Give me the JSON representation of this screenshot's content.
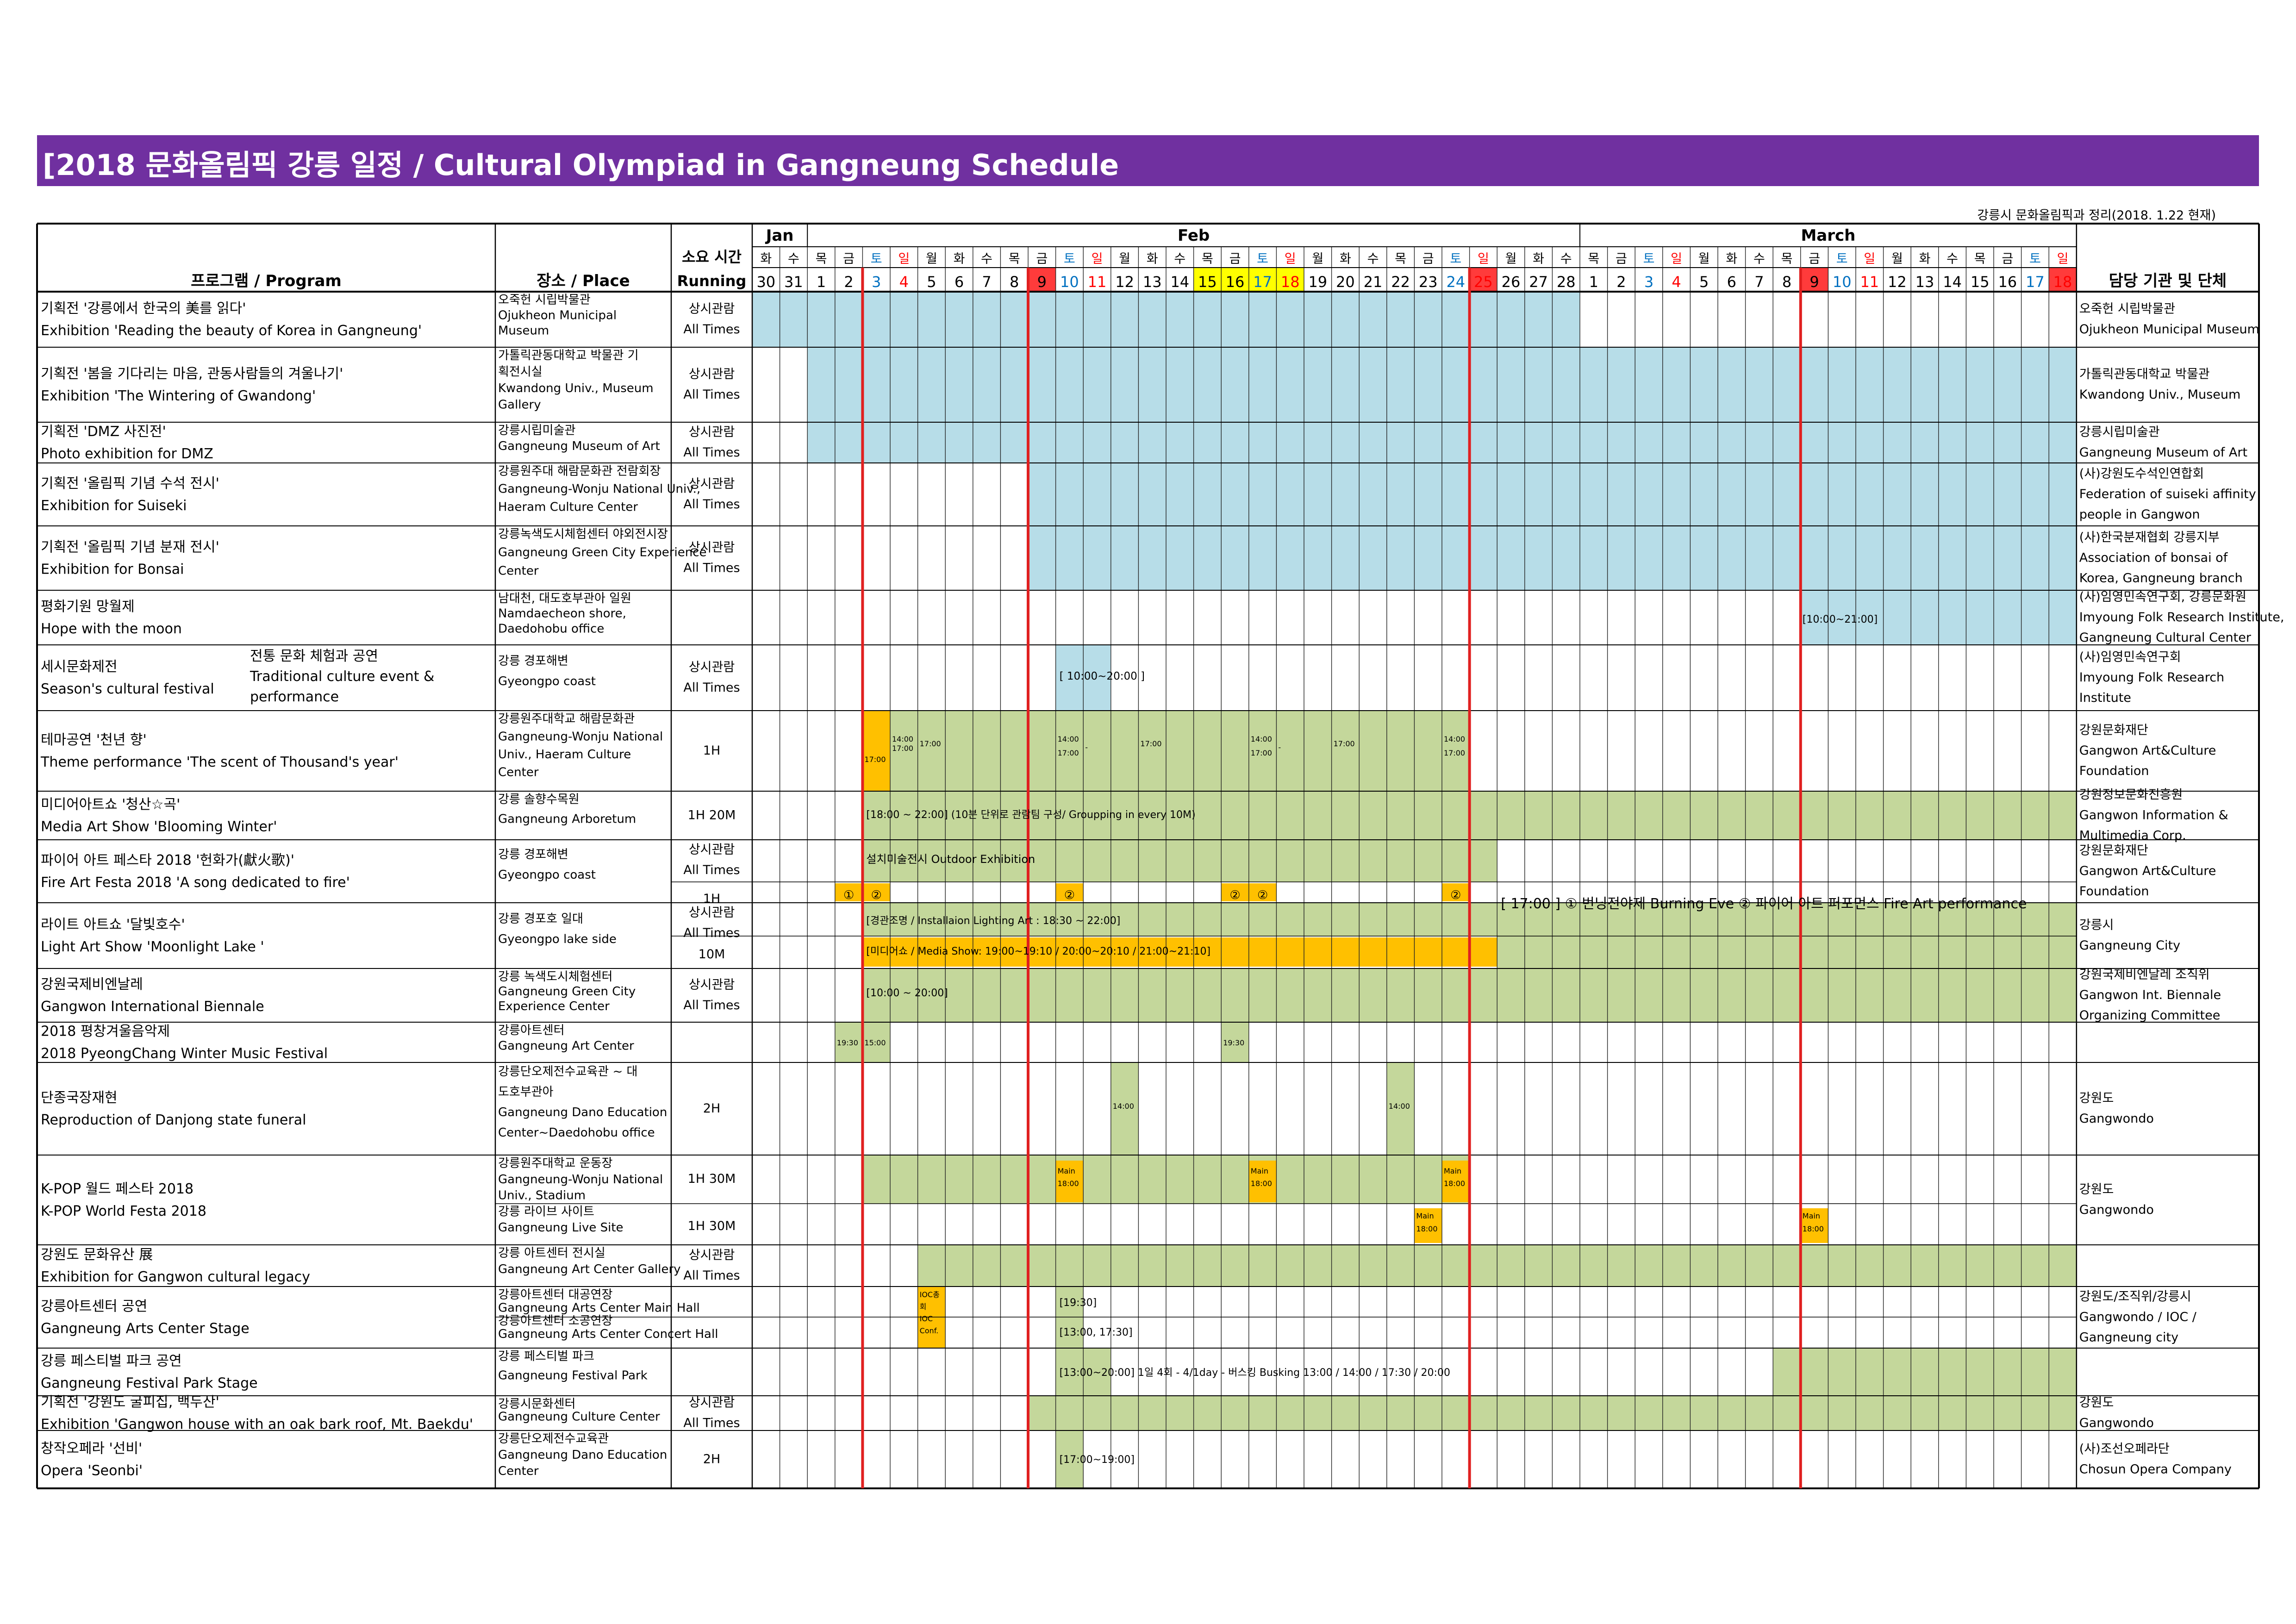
{
  "title": "[2018 문화올림픽 강릉 일정  / Cultural Olympiad in Gangneung Schedule",
  "source_note": "강릉시 문화올림픽과 정리(2018. 1.22 현재)",
  "colors": {
    "title_bg": "#7030a0",
    "blue_fill": "#b7dde8",
    "green_fill": "#c4d79b",
    "orange_fill": "#ffc000",
    "red_line": "#e02020",
    "weekend_sat": "#0070c0",
    "weekend_sun": "#ff0000",
    "holiday_red": "#ff3b3b",
    "holiday_yellow": "#ffff00"
  },
  "header": {
    "program": "프로그램 / Program",
    "place": "장소 / Place",
    "running_ko": "소요 시간",
    "running_en": "Running",
    "organizer": "담당 기관 및 단체",
    "months": [
      {
        "label": "Jan",
        "start": 0,
        "end": 1
      },
      {
        "label": "Feb",
        "start": 2,
        "end": 29
      },
      {
        "label": "March",
        "start": 30,
        "end": 47
      }
    ]
  },
  "dates": [
    "30",
    "31",
    "1",
    "2",
    "3",
    "4",
    "5",
    "6",
    "7",
    "8",
    "9",
    "10",
    "11",
    "12",
    "13",
    "14",
    "15",
    "16",
    "17",
    "18",
    "19",
    "20",
    "21",
    "22",
    "23",
    "24",
    "25",
    "26",
    "27",
    "28",
    "1",
    "2",
    "3",
    "4",
    "5",
    "6",
    "7",
    "8",
    "9",
    "10",
    "11",
    "12",
    "13",
    "14",
    "15",
    "16",
    "17",
    "18"
  ],
  "weekdays": [
    "화",
    "수",
    "목",
    "금",
    "토",
    "일",
    "월",
    "화",
    "수",
    "목",
    "금",
    "토",
    "일",
    "월",
    "화",
    "수",
    "목",
    "금",
    "토",
    "일",
    "월",
    "화",
    "수",
    "목",
    "금",
    "토",
    "일",
    "월",
    "화",
    "수",
    "목",
    "금",
    "토",
    "일",
    "월",
    "화",
    "수",
    "목",
    "금",
    "토",
    "일",
    "월",
    "화",
    "수",
    "목",
    "금",
    "토",
    "일"
  ],
  "date_highlights": {
    "red_bg": [
      10,
      26,
      38,
      47
    ],
    "yellow_bg": [
      16,
      17,
      18,
      19
    ]
  },
  "rows": [
    {
      "program": [
        "기획전 '강릉에서 한국의 美를 읽다'",
        "Exhibition 'Reading the beauty of Korea in Gangneung'"
      ],
      "place": [
        "오죽헌 시립박물관",
        "Ojukheon Municipal",
        "Museum"
      ],
      "running": [
        "상시관람",
        "All Times"
      ],
      "organizer": [
        "오죽헌 시립박물관",
        "Ojukheon Municipal Museum"
      ]
    },
    {
      "program": [
        "기획전 '봄을 기다리는 마음, 관동사람들의 겨울나기'",
        "Exhibition 'The Wintering of Gwandong'"
      ],
      "place": [
        "가톨릭관동대학교 박물관 기",
        "획전시실",
        "Kwandong Univ., Museum",
        "Gallery"
      ],
      "running": [
        "상시관람",
        "All Times"
      ],
      "organizer": [
        "가톨릭관동대학교 박물관",
        "Kwandong Univ., Museum"
      ]
    },
    {
      "program": [
        "기획전 'DMZ 사진전'",
        "Photo exhibition for DMZ"
      ],
      "place": [
        "강릉시립미술관",
        "Gangneung Museum of Art"
      ],
      "running": [
        "상시관람",
        "All Times"
      ],
      "organizer": [
        "강릉시립미술관",
        "Gangneung Museum of Art"
      ]
    },
    {
      "program": [
        "기획전 '올림픽 기념 수석 전시'",
        "Exhibition for Suiseki"
      ],
      "place": [
        "강릉원주대 해람문화관 전람회장",
        "Gangneung-Wonju National Univ.,",
        "Haeram Culture Center"
      ],
      "running": [
        "상시관람",
        "All Times"
      ],
      "organizer": [
        "(사)강원도수석인연합회",
        "Federation of suiseki affinity",
        "people in Gangwon"
      ]
    },
    {
      "program": [
        "기획전 '올림픽 기념 분재 전시'",
        "Exhibition for Bonsai"
      ],
      "place": [
        "강릉녹색도시체험센터 야외전시장",
        "Gangneung Green City Experience",
        "Center"
      ],
      "running": [
        "상시관람",
        "All Times"
      ],
      "organizer": [
        "(사)한국분재협회 강릉지부",
        "Association of bonsai of",
        "Korea, Gangneung branch"
      ]
    },
    {
      "program": [
        "평화기원 망월제",
        "Hope with the moon"
      ],
      "place": [
        "남대천, 대도호부관아 일원",
        "Namdaecheon shore,",
        "Daedohobu office"
      ],
      "running": [
        "",
        ""
      ],
      "organizer": [
        "(사)임영민속연구회, 강릉문화원",
        "Imyoung Folk Research Institute,",
        "Gangneung Cultural Center"
      ],
      "note": "[10:00~21:00]"
    },
    {
      "program": [
        "세시문화제전",
        "Season's cultural festival"
      ],
      "program2": [
        "전통 문화 체험과 공연",
        "Traditional culture event &",
        "performance"
      ],
      "place": [
        "강릉 경포해변",
        "Gyeongpo coast"
      ],
      "running": [
        "상시관람",
        "All Times"
      ],
      "organizer": [
        "(사)임영민속연구회",
        "Imyoung Folk Research",
        "Institute"
      ],
      "note": "[ 10:00~20:00 ]"
    },
    {
      "program": [
        "테마공연 '천년 향'",
        "Theme performance 'The scent of Thousand's year'"
      ],
      "place": [
        "강릉원주대학교 해람문화관",
        "Gangneung-Wonju National",
        "Univ., Haeram Culture",
        "Center"
      ],
      "running": [
        "1H"
      ],
      "organizer": [
        "강원문화재단",
        "Gangwon Art&Culture",
        "Foundation"
      ],
      "times": [
        "17:00",
        "14:00",
        "17:00",
        "17:00",
        "14:00",
        "17:00",
        "-",
        "17:00",
        "14:00",
        "17:00",
        "-",
        "17:00",
        "14:00",
        "17:00"
      ]
    },
    {
      "program": [
        "미디어아트쇼 '청산☆곡'",
        "Media Art Show 'Blooming Winter'"
      ],
      "place": [
        "강릉 솔향수목원",
        "Gangneung Arboretum"
      ],
      "running": [
        "1H 20M"
      ],
      "organizer": [
        "강원정보문화진흥원",
        "Gangwon Information &",
        "Multimedia Corp."
      ],
      "note": "[18:00 ~ 22:00] (10분 단위로 관람팀 구성/ Groupping in every 10M)"
    },
    {
      "program": [
        "파이어 아트 페스타 2018 '헌화가(獻火歌)'",
        "Fire Art Festa 2018 'A song dedicated to fire'"
      ],
      "place": [
        "강릉 경포해변",
        "Gyeongpo coast"
      ],
      "running": [
        "상시관람",
        "All Times",
        "1H"
      ],
      "organizer": [
        "강원문화재단",
        "Gangwon Art&Culture",
        "Foundation"
      ],
      "note": "설치미술전시 Outdoor Exhibition",
      "note2": "[ 17:00 ] ① 번닝전야제 Burning Eve ② 파이어 아트 퍼포먼스 Fire Art performance",
      "marks": [
        "①",
        "②",
        "②",
        "②",
        "②",
        "②"
      ]
    },
    {
      "program": [
        "라이트 아트쇼 '달빛호수'",
        "Light Art Show 'Moonlight Lake '"
      ],
      "place": [
        "강릉 경포호 일대",
        "Gyeongpo lake side"
      ],
      "running": [
        "상시관람",
        "All Times",
        "10M"
      ],
      "organizer": [
        "강릉시",
        "Gangneung City"
      ],
      "note": "[경관조명 / Installaion Lighting Art : 18:30 ~ 22:00]",
      "note2": "[미디어쇼 / Media Show: 19:00~19:10 / 20:00~20:10 / 21:00~21:10]"
    },
    {
      "program": [
        "강원국제비엔날레",
        "Gangwon International Biennale"
      ],
      "place": [
        "강릉 녹색도시체험센터",
        "Gangneung Green City",
        "Experience Center"
      ],
      "running": [
        "상시관람",
        "All Times"
      ],
      "organizer": [
        "강원국제비엔날레 조직위",
        "Gangwon Int. Biennale",
        "Organizing Committee"
      ],
      "note": "[10:00 ~ 20:00]"
    },
    {
      "program": [
        "2018 평창겨울음악제",
        "2018 PyeongChang Winter Music Festival"
      ],
      "place": [
        "강릉아트센터",
        "Gangneung Art Center"
      ],
      "running": [
        ""
      ],
      "organizer": [],
      "times": [
        "19:30",
        "15:00",
        "19:30"
      ]
    },
    {
      "program": [
        "단종국장재현",
        "Reproduction of Danjong state funeral"
      ],
      "place": [
        "강릉단오제전수교육관 ~ 대",
        "도호부관아",
        "Gangneung Dano Education",
        "Center~Daedohobu office"
      ],
      "running": [
        "2H"
      ],
      "organizer": [
        "강원도",
        "Gangwondo"
      ],
      "times": [
        "14:00",
        "14:00"
      ]
    },
    {
      "program": [
        "K-POP 월드 페스타 2018",
        "K-POP World Festa 2018"
      ],
      "place": [
        "강릉원주대학교 운동장",
        "Gangneung-Wonju National",
        "Univ., Stadium",
        "강릉 라이브 사이트",
        "Gangneung Live Site"
      ],
      "running": [
        "1H 30M",
        "1H 30M"
      ],
      "organizer": [
        "강원도",
        "Gangwondo"
      ],
      "times": [
        "Main",
        "18:00"
      ]
    },
    {
      "program": [
        "강원도 문화유산 展",
        "Exhibition for Gangwon cultural legacy"
      ],
      "place": [
        "강릉 아트센터 전시실",
        "Gangneung Art Center Gallery"
      ],
      "running": [
        "상시관람",
        "All Times"
      ],
      "organizer": []
    },
    {
      "program": [
        "강릉아트센터 공연",
        "Gangneung Arts Center Stage"
      ],
      "place": [
        "강릉아트센터 대공연장",
        "Gangneung Arts Center Main Hall",
        "강릉아트센터 소공연장",
        "Gangneung Arts Center Concert Hall"
      ],
      "running": [
        ""
      ],
      "organizer": [
        "강원도/조직위/강릉시",
        "Gangwondo / IOC /",
        "Gangneung city"
      ],
      "note": "[19:30]",
      "note2": "[13:00, 17:30]",
      "ioc": [
        "IOC총",
        "회",
        "IOC",
        "Conf."
      ]
    },
    {
      "program": [
        "강릉 페스티벌 파크 공연",
        "Gangneung Festival Park Stage"
      ],
      "place": [
        "강릉 페스티벌 파크",
        "Gangneung Festival Park"
      ],
      "running": [
        ""
      ],
      "organizer": [],
      "note": "[13:00~20:00] 1일 4회 - 4/1day - 버스킹 Busking 13:00 / 14:00 / 17:30 / 20:00"
    },
    {
      "program": [
        "기획전 '강원도 굴피집, 백두산'",
        "Exhibition 'Gangwon house with an oak bark roof, Mt. Baekdu'"
      ],
      "place": [
        "강릉시문화센터",
        "Gangneung Culture Center"
      ],
      "running": [
        "상시관람",
        "All Times"
      ],
      "organizer": [
        "강원도",
        "Gangwondo"
      ]
    },
    {
      "program": [
        "창작오페라 '선비'",
        "Opera 'Seonbi'"
      ],
      "place": [
        "강릉단오제전수교육관",
        "Gangneung Dano Education",
        "Center"
      ],
      "running": [
        "2H"
      ],
      "organizer": [
        "(사)조선오페라단",
        "Chosun Opera Company"
      ],
      "note": "[17:00~19:00]"
    }
  ]
}
